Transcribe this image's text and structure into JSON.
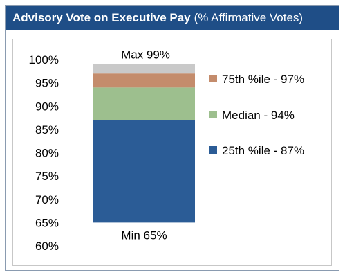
{
  "title": {
    "bold": "Advisory Vote on Executive Pay",
    "rest": "(% Affirmative Votes)"
  },
  "colors": {
    "title_bg": "#1f4e87",
    "p25": "#2b5c96",
    "median": "#9dbf8e",
    "p75": "#c48c6c",
    "max": "#c9c9c9"
  },
  "chart_data": {
    "type": "bar",
    "stacked": true,
    "title": "Advisory Vote on Executive Pay (% Affirmative Votes)",
    "ylim": [
      60,
      100
    ],
    "yticks": [
      "60%",
      "65%",
      "70%",
      "75%",
      "80%",
      "85%",
      "90%",
      "95%",
      "100%"
    ],
    "tick_values": [
      60,
      65,
      70,
      75,
      80,
      85,
      90,
      95,
      100
    ],
    "min": 65,
    "segments": [
      {
        "name": "25th %ile",
        "value": 87,
        "color": "#2b5c96"
      },
      {
        "name": "Median",
        "value": 94,
        "color": "#9dbf8e"
      },
      {
        "name": "75th %ile",
        "value": 97,
        "color": "#c48c6c"
      },
      {
        "name": "Max",
        "value": 99,
        "color": "#c9c9c9"
      }
    ],
    "labels": {
      "max": "Max 99%",
      "min": "Min 65%"
    },
    "legend": [
      {
        "label": "75th %ile - 97%",
        "color": "#c48c6c"
      },
      {
        "label": "Median - 94%",
        "color": "#9dbf8e"
      },
      {
        "label": "25th %ile - 87%",
        "color": "#2b5c96"
      }
    ],
    "legend_position": "right"
  }
}
